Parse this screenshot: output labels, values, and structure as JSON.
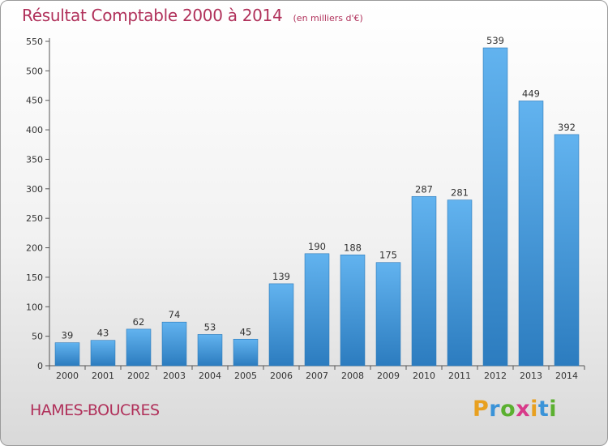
{
  "chart_data": {
    "type": "bar",
    "title": "Résultat Comptable 2000 à 2014",
    "subtitle": "(en milliers d'€)",
    "categories": [
      "2000",
      "2001",
      "2002",
      "2003",
      "2004",
      "2005",
      "2006",
      "2007",
      "2008",
      "2009",
      "2010",
      "2011",
      "2012",
      "2013",
      "2014"
    ],
    "values": [
      39,
      43,
      62,
      74,
      53,
      45,
      139,
      190,
      188,
      175,
      287,
      281,
      539,
      449,
      392
    ],
    "ylim": [
      0,
      550
    ],
    "yticks": [
      0,
      50,
      100,
      150,
      200,
      250,
      300,
      350,
      400,
      450,
      500,
      550
    ],
    "grid": false,
    "bar_color": "#3a93d8"
  },
  "footer": {
    "place": "HAMES-BOUCRES",
    "logo_letters": [
      "P",
      "r",
      "o",
      "x",
      "i",
      "t",
      "i"
    ],
    "logo_colors": [
      "#e8a020",
      "#3a93d8",
      "#5bb030",
      "#d83a8a",
      "#e8a020",
      "#3a93d8",
      "#5bb030"
    ]
  }
}
